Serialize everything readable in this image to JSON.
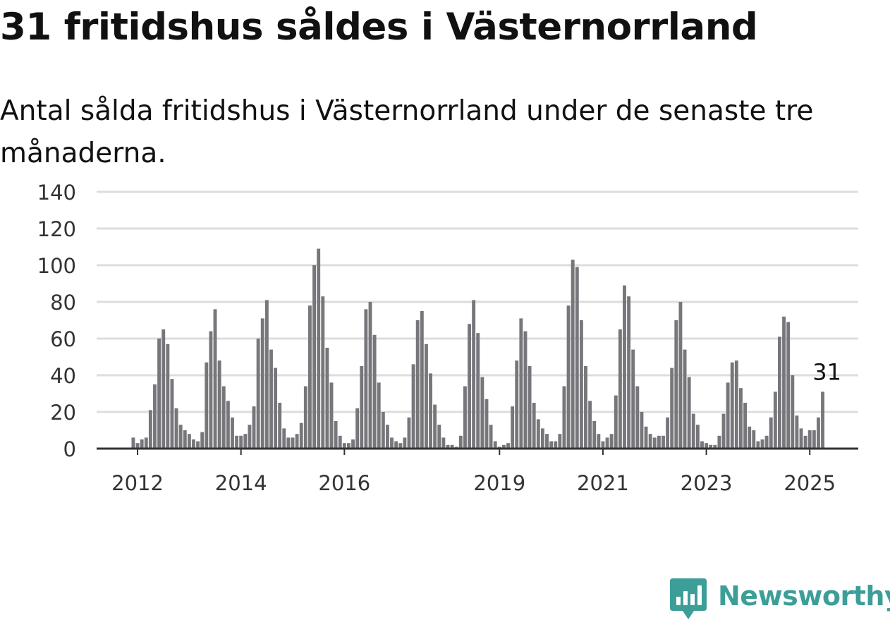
{
  "title": "31 fritidshus såldes i Västernorrland",
  "subtitle": "Antal sålda fritidshus i Västernorrland under de senaste tre månaderna.",
  "brand": {
    "name": "Newsworthy",
    "color": "#3d9e98",
    "icon": "bar-chart-icon"
  },
  "colors": {
    "bar": "#77767b",
    "highlight": "#16a89e",
    "grid": "#dddddd",
    "axis": "#333333"
  },
  "chart_data": {
    "type": "bar",
    "title": "31 fritidshus såldes i Västernorrland",
    "subtitle": "Antal sålda fritidshus i Västernorrland under de senaste tre månaderna.",
    "xlabel": "",
    "ylabel": "",
    "ylim": [
      0,
      140
    ],
    "yticks": [
      0,
      20,
      40,
      60,
      80,
      100,
      120,
      140
    ],
    "grid": true,
    "legend": "none",
    "x_start": "2011-12",
    "frequency": "monthly",
    "xticks": [
      {
        "label": "2012",
        "date": "2012-01"
      },
      {
        "label": "2014",
        "date": "2014-01"
      },
      {
        "label": "2016",
        "date": "2016-01"
      },
      {
        "label": "2019",
        "date": "2019-01"
      },
      {
        "label": "2021",
        "date": "2021-01"
      },
      {
        "label": "2023",
        "date": "2023-01"
      },
      {
        "label": "2025",
        "date": "2025-01"
      }
    ],
    "values": [
      6,
      3,
      5,
      6,
      21,
      35,
      60,
      65,
      57,
      38,
      22,
      13,
      10,
      8,
      5,
      4,
      9,
      47,
      64,
      76,
      48,
      34,
      26,
      17,
      7,
      7,
      8,
      13,
      23,
      60,
      71,
      81,
      54,
      44,
      25,
      11,
      6,
      6,
      8,
      14,
      34,
      78,
      100,
      109,
      83,
      55,
      36,
      15,
      7,
      3,
      3,
      5,
      22,
      45,
      76,
      80,
      62,
      36,
      20,
      13,
      6,
      4,
      3,
      6,
      17,
      46,
      70,
      75,
      57,
      41,
      24,
      13,
      6,
      2,
      2,
      1,
      7,
      34,
      68,
      81,
      63,
      39,
      27,
      13,
      4,
      1,
      2,
      3,
      23,
      48,
      71,
      64,
      45,
      25,
      16,
      11,
      8,
      4,
      4,
      8,
      34,
      78,
      103,
      99,
      70,
      45,
      26,
      15,
      8,
      4,
      6,
      8,
      29,
      65,
      89,
      83,
      54,
      34,
      20,
      12,
      8,
      6,
      7,
      7,
      17,
      44,
      70,
      80,
      54,
      39,
      19,
      13,
      4,
      3,
      2,
      2,
      7,
      19,
      36,
      47,
      48,
      33,
      25,
      12,
      10,
      4,
      5,
      7,
      17,
      31,
      61,
      72,
      69,
      40,
      18,
      11,
      7,
      10,
      10,
      17,
      31
    ],
    "highlight": {
      "index": 161,
      "value": 31,
      "label": "31"
    }
  }
}
